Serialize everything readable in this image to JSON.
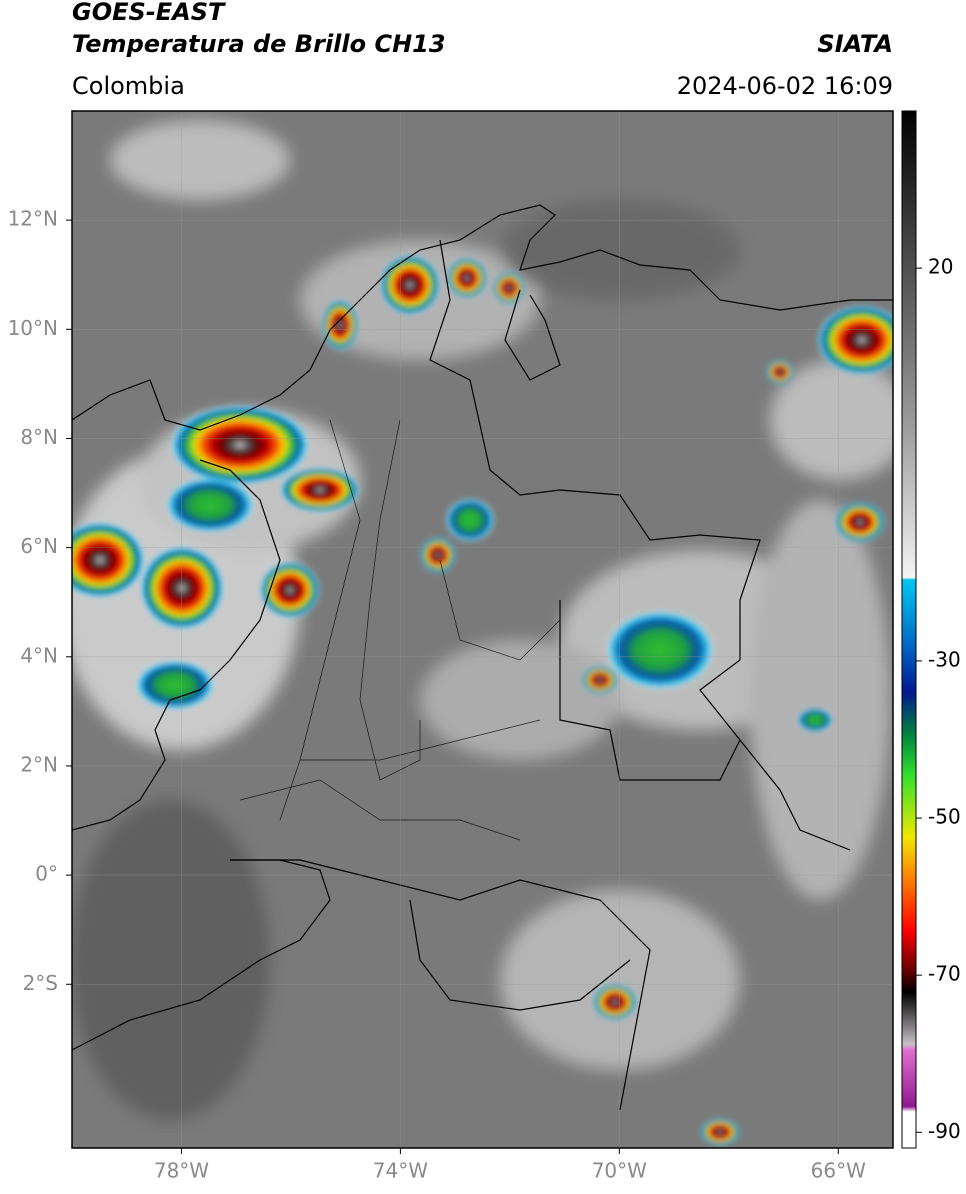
{
  "header": {
    "title_line1": "GOES-EAST",
    "title_line2": "Temperatura de Brillo CH13",
    "source": "SIATA",
    "region": "Colombia",
    "timestamp": "2024-06-02 16:09"
  },
  "map": {
    "xlim": [
      -80,
      -65
    ],
    "ylim": [
      -5,
      14
    ],
    "xticks": [
      {
        "value": -78,
        "label": "78°W"
      },
      {
        "value": -74,
        "label": "74°W"
      },
      {
        "value": -70,
        "label": "70°W"
      },
      {
        "value": -66,
        "label": "66°W"
      }
    ],
    "yticks": [
      {
        "value": 12,
        "label": "12°N"
      },
      {
        "value": 10,
        "label": "10°N"
      },
      {
        "value": 8,
        "label": "8°N"
      },
      {
        "value": 6,
        "label": "6°N"
      },
      {
        "value": 4,
        "label": "4°N"
      },
      {
        "value": 2,
        "label": "2°N"
      },
      {
        "value": 0,
        "label": "0°"
      },
      {
        "value": -2,
        "label": "2°S"
      }
    ]
  },
  "colorbar": {
    "lim": [
      -92,
      40
    ],
    "ticks": [
      20,
      -30,
      -50,
      -70,
      -90
    ]
  }
}
